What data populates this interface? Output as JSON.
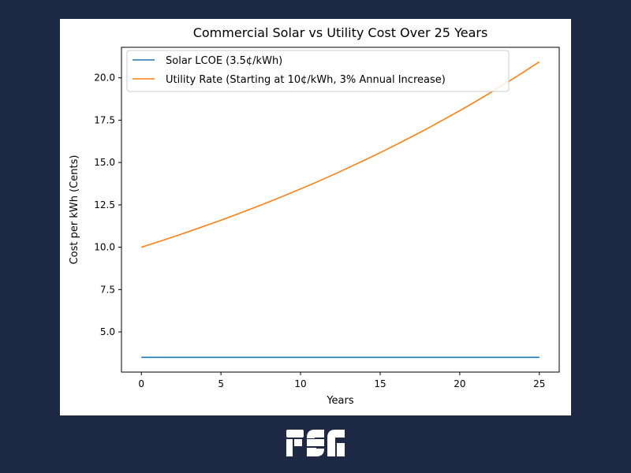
{
  "chart_data": {
    "type": "line",
    "title": "Commercial Solar vs Utility Cost Over 25 Years",
    "xlabel": "Years",
    "ylabel": "Cost per kWh (Cents)",
    "xlim": [
      -1.25,
      26.25
    ],
    "ylim": [
      2.63,
      21.8
    ],
    "xticks": [
      0,
      5,
      10,
      15,
      20,
      25
    ],
    "xtick_labels": [
      "0",
      "5",
      "10",
      "15",
      "20",
      "25"
    ],
    "yticks": [
      5.0,
      7.5,
      10.0,
      12.5,
      15.0,
      17.5,
      20.0
    ],
    "ytick_labels": [
      "5.0",
      "7.5",
      "10.0",
      "12.5",
      "15.0",
      "17.5",
      "20.0"
    ],
    "grid": false,
    "legend_position": "top-left",
    "x": [
      0,
      1,
      2,
      3,
      4,
      5,
      6,
      7,
      8,
      9,
      10,
      11,
      12,
      13,
      14,
      15,
      16,
      17,
      18,
      19,
      20,
      21,
      22,
      23,
      24,
      25
    ],
    "series": [
      {
        "name": "Solar LCOE (3.5¢/kWh)",
        "color": "#1f77b4",
        "values": [
          3.5,
          3.5,
          3.5,
          3.5,
          3.5,
          3.5,
          3.5,
          3.5,
          3.5,
          3.5,
          3.5,
          3.5,
          3.5,
          3.5,
          3.5,
          3.5,
          3.5,
          3.5,
          3.5,
          3.5,
          3.5,
          3.5,
          3.5,
          3.5,
          3.5,
          3.5
        ]
      },
      {
        "name": "Utility Rate (Starting at 10¢/kWh, 3% Annual Increase)",
        "color": "#ff7f0e",
        "values": [
          10.0,
          10.3,
          10.61,
          10.93,
          11.26,
          11.59,
          11.94,
          12.3,
          12.67,
          13.05,
          13.44,
          13.84,
          14.26,
          14.69,
          15.13,
          15.58,
          16.05,
          16.53,
          17.02,
          17.54,
          18.06,
          18.6,
          19.16,
          19.74,
          20.33,
          20.94
        ]
      }
    ]
  },
  "logo": {
    "text": "FSG"
  },
  "colors": {
    "background": "#1e2a45",
    "panel": "#ffffff",
    "logo": "#ffffff"
  }
}
